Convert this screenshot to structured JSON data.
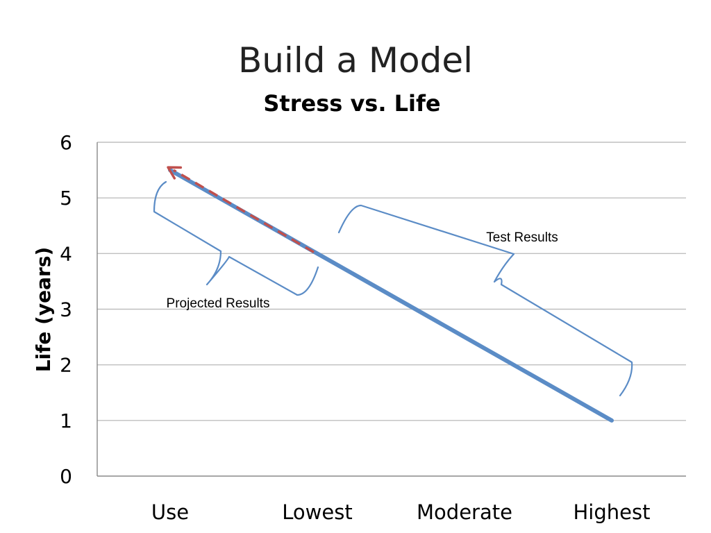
{
  "slide": {
    "title": "Build a Model"
  },
  "chart_data": {
    "type": "line",
    "title": "Stress vs. Life",
    "xlabel": "",
    "ylabel": "Life (years)",
    "categories": [
      "Use",
      "Lowest",
      "Moderate",
      "Highest"
    ],
    "ylim": [
      0,
      6
    ],
    "yticks": [
      0,
      1,
      2,
      3,
      4,
      5,
      6
    ],
    "grid": true,
    "series": [
      {
        "values": [
          5.5,
          4.0,
          2.5,
          1.0
        ],
        "color": "#5b8cc6"
      }
    ],
    "projection": {
      "from": [
        "Lowest",
        4.0
      ],
      "to": [
        "Use",
        5.55
      ],
      "style": "dashed-arrow",
      "color": "#c0504d"
    },
    "annotations": [
      {
        "text": "Projected Results",
        "span": [
          "Use",
          "Lowest"
        ]
      },
      {
        "text": "Test Results",
        "span": [
          "Lowest",
          "Highest"
        ]
      }
    ],
    "colors": {
      "grid": "#bfbfbf",
      "axis": "#888888",
      "brace": "#5b8cc6"
    }
  }
}
